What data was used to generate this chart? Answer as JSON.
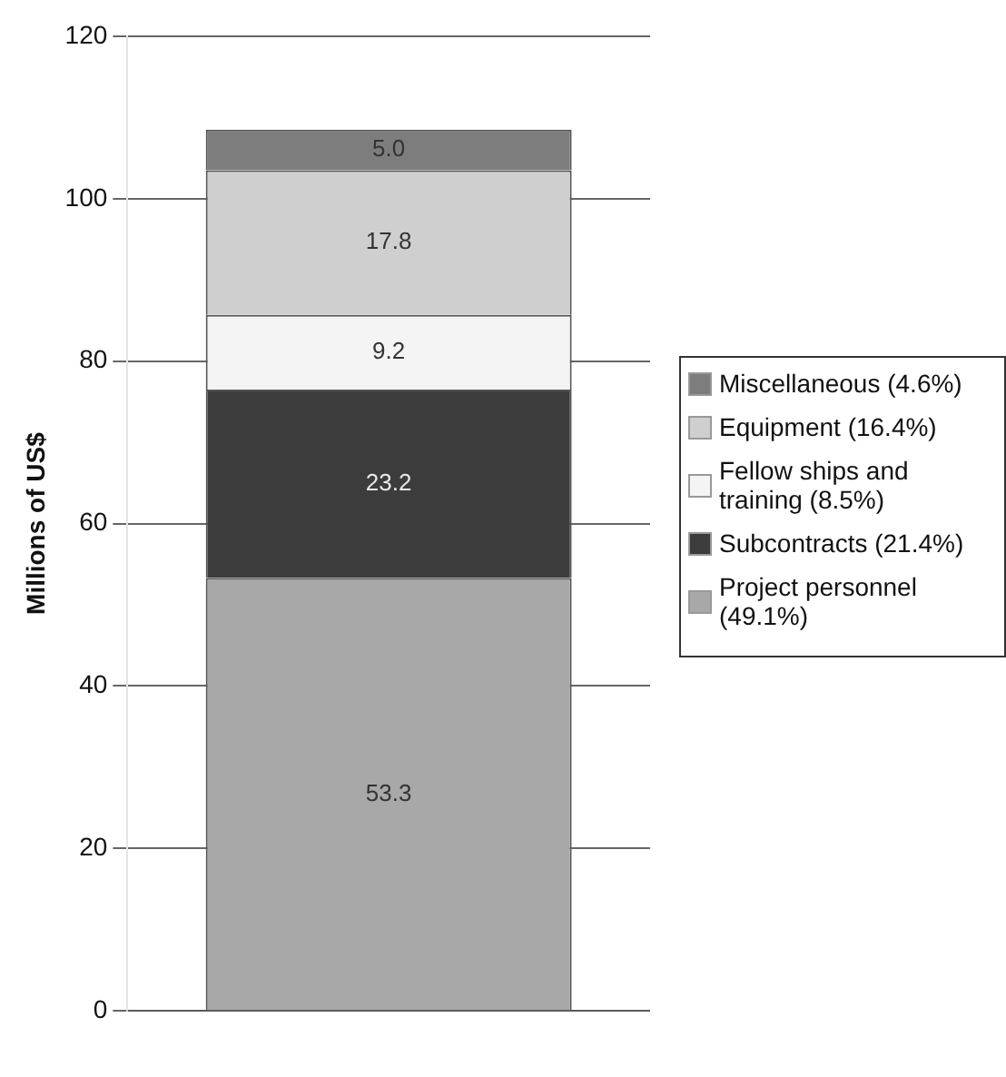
{
  "chart_data": {
    "type": "bar",
    "stacked": true,
    "categories": [
      null
    ],
    "ylabel": "Millions of US$",
    "ylim": [
      0,
      120
    ],
    "yticks": [
      0,
      20,
      40,
      60,
      80,
      100,
      120
    ],
    "grid": "y",
    "legend": "right",
    "series": [
      {
        "name": "Project personnel (49.1%)",
        "color": "#a8a8a8",
        "values": [
          53.3
        ],
        "value_labels": [
          "53.3"
        ]
      },
      {
        "name": "Subcontracts (21.4%)",
        "color": "#3c3c3c",
        "values": [
          23.2
        ],
        "value_labels": [
          "23.2"
        ]
      },
      {
        "name": "Fellow ships and training (8.5%)",
        "color": "#f4f4f4",
        "values": [
          9.2
        ],
        "value_labels": [
          "9.2"
        ]
      },
      {
        "name": "Equipment (16.4%)",
        "color": "#cfcfcf",
        "values": [
          17.8
        ],
        "value_labels": [
          "17.8"
        ]
      },
      {
        "name": "Miscellaneous (4.6%)",
        "color": "#7d7d7d",
        "values": [
          5.0
        ],
        "value_labels": [
          "5.0"
        ]
      }
    ]
  }
}
